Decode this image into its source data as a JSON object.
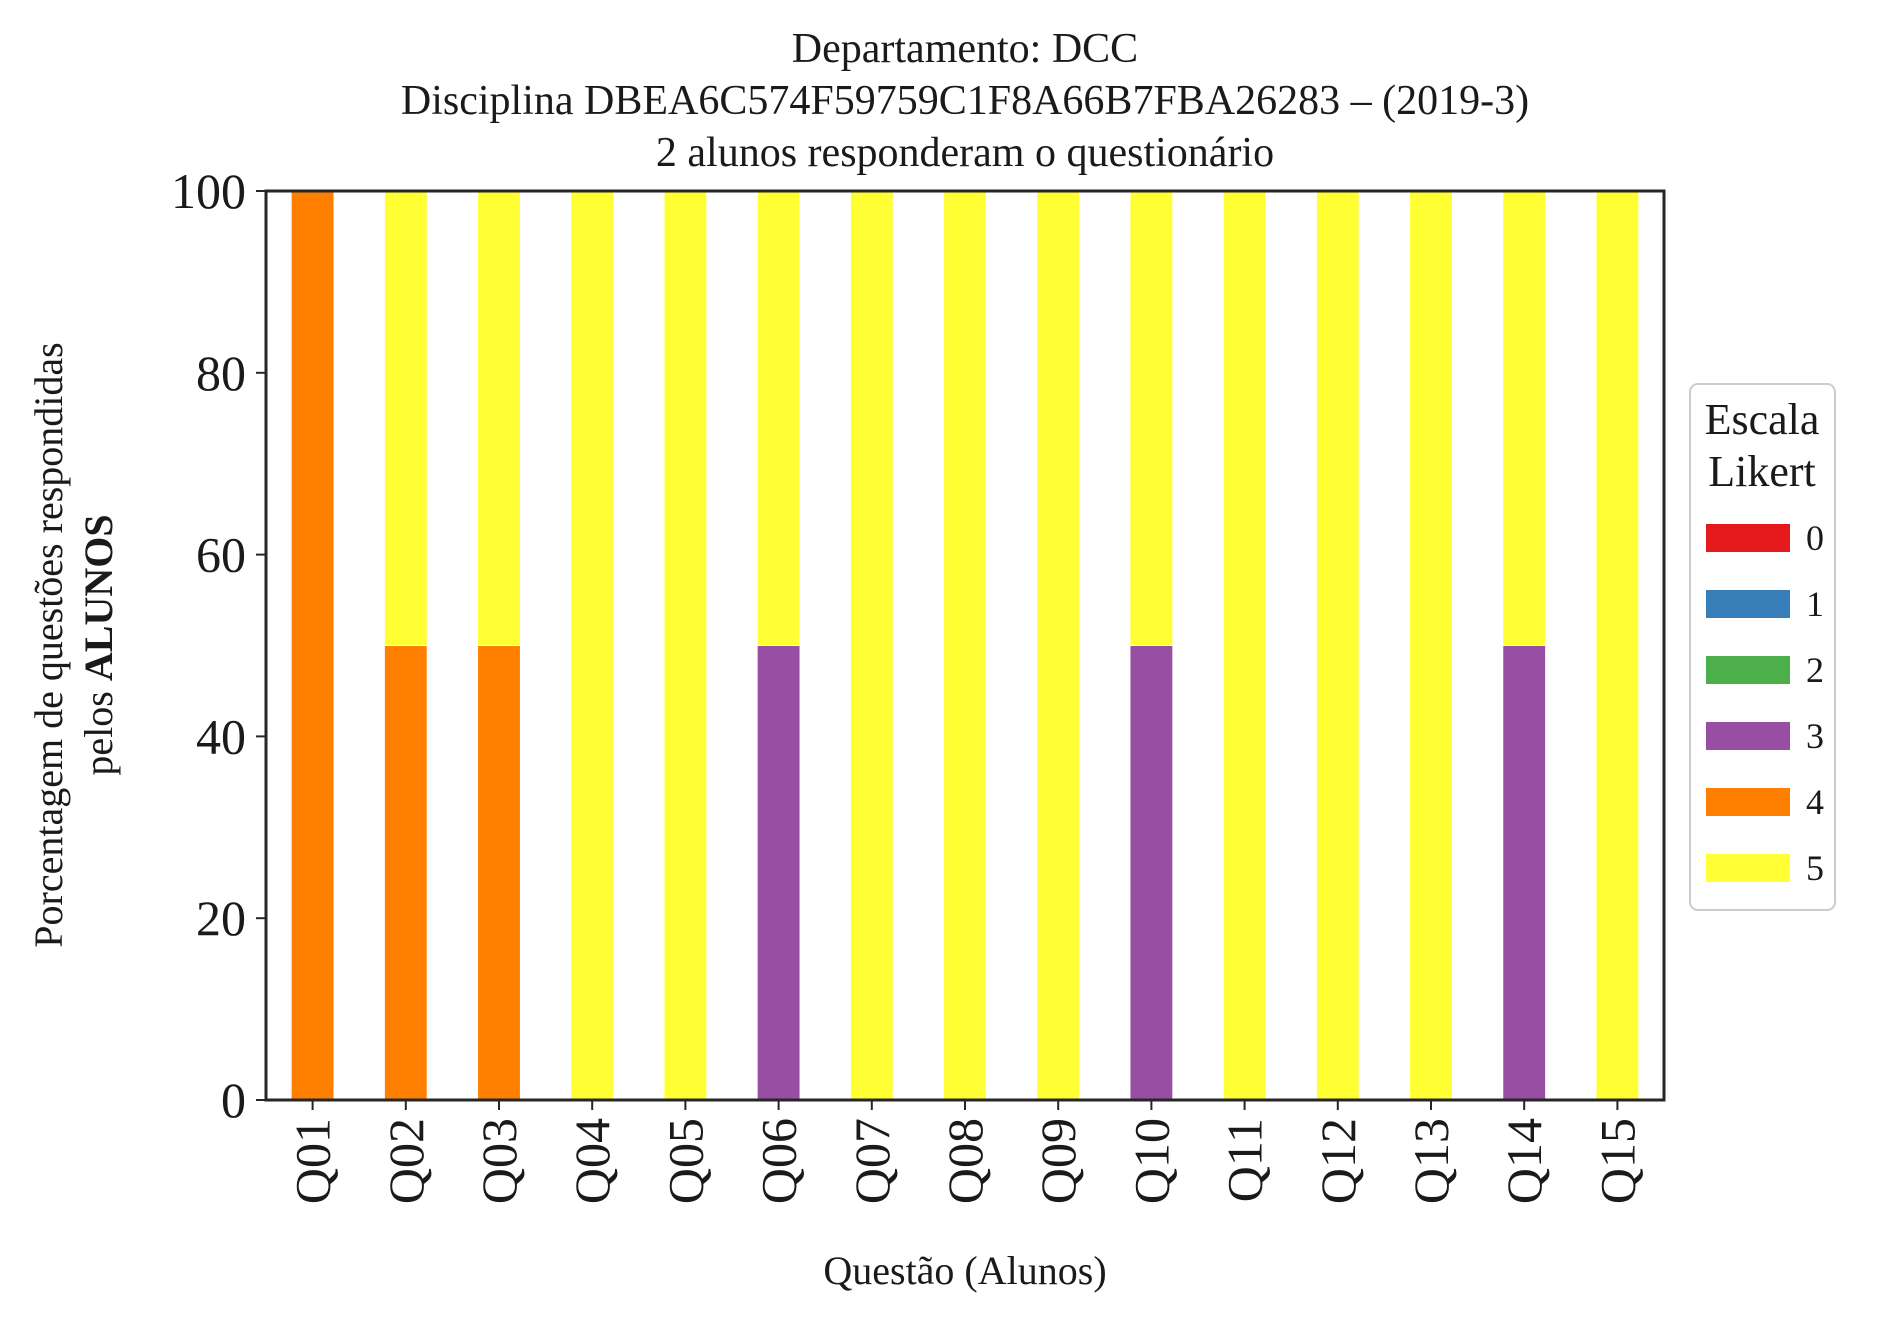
{
  "chart_data": {
    "type": "bar",
    "stacked": true,
    "title": [
      "Departamento: DCC",
      "Disciplina DBEA6C574F59759C1F8A66B7FBA26283 – (2019-3)",
      "2 alunos responderam o questionário"
    ],
    "xlabel": "Questão (Alunos)",
    "ylabel_line1": "Porcentagem de questões respondidas",
    "ylabel_line2_prefix": "pelos ",
    "ylabel_line2_bold": "ALUNOS",
    "ylim": [
      0,
      100
    ],
    "yticks": [
      "0",
      "20",
      "40",
      "60",
      "80",
      "100"
    ],
    "grid": false,
    "categories": [
      "Q01",
      "Q02",
      "Q03",
      "Q04",
      "Q05",
      "Q06",
      "Q07",
      "Q08",
      "Q09",
      "Q10",
      "Q11",
      "Q12",
      "Q13",
      "Q14",
      "Q15"
    ],
    "legend": {
      "title_line1": "Escala",
      "title_line2": "Likert",
      "placement": "center-right, outside axes"
    },
    "series": [
      {
        "name": "0",
        "color": "#e41a1c",
        "values": [
          0,
          0,
          0,
          0,
          0,
          0,
          0,
          0,
          0,
          0,
          0,
          0,
          0,
          0,
          0
        ]
      },
      {
        "name": "1",
        "color": "#377eb8",
        "values": [
          0,
          0,
          0,
          0,
          0,
          0,
          0,
          0,
          0,
          0,
          0,
          0,
          0,
          0,
          0
        ]
      },
      {
        "name": "2",
        "color": "#4daf4a",
        "values": [
          0,
          0,
          0,
          0,
          0,
          0,
          0,
          0,
          0,
          0,
          0,
          0,
          0,
          0,
          0
        ]
      },
      {
        "name": "3",
        "color": "#984ea3",
        "values": [
          0,
          0,
          0,
          0,
          0,
          50,
          0,
          0,
          0,
          50,
          0,
          0,
          0,
          50,
          0
        ]
      },
      {
        "name": "4",
        "color": "#ff7f00",
        "values": [
          100,
          50,
          50,
          0,
          0,
          0,
          0,
          0,
          0,
          0,
          0,
          0,
          0,
          0,
          0
        ]
      },
      {
        "name": "5",
        "color": "#ffff33",
        "values": [
          0,
          50,
          50,
          100,
          100,
          50,
          100,
          100,
          100,
          50,
          100,
          100,
          100,
          50,
          100
        ]
      }
    ]
  }
}
